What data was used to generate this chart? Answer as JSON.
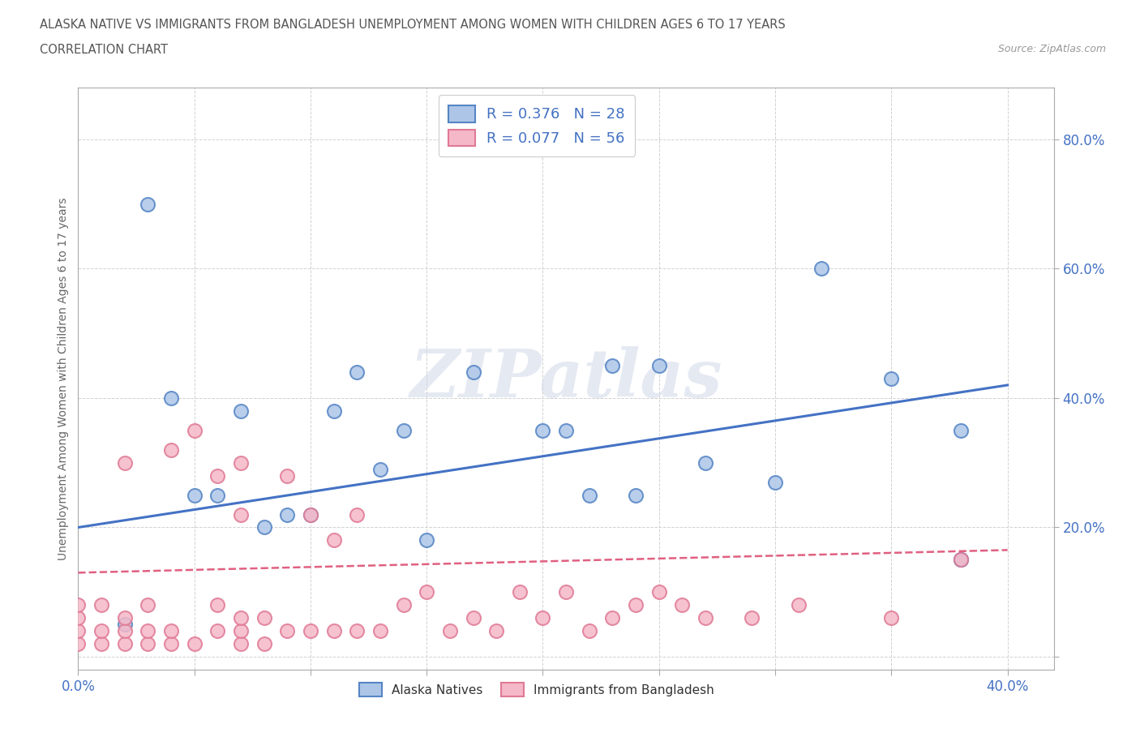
{
  "title_line1": "ALASKA NATIVE VS IMMIGRANTS FROM BANGLADESH UNEMPLOYMENT AMONG WOMEN WITH CHILDREN AGES 6 TO 17 YEARS",
  "title_line2": "CORRELATION CHART",
  "source": "Source: ZipAtlas.com",
  "ylabel": "Unemployment Among Women with Children Ages 6 to 17 years",
  "xlim": [
    0.0,
    0.42
  ],
  "ylim": [
    -0.02,
    0.88
  ],
  "x_ticks": [
    0.0,
    0.05,
    0.1,
    0.15,
    0.2,
    0.25,
    0.3,
    0.35,
    0.4
  ],
  "y_ticks": [
    0.0,
    0.2,
    0.4,
    0.6,
    0.8
  ],
  "blue_fill": "#adc6e8",
  "blue_edge": "#5585c5",
  "pink_fill": "#f5b8c8",
  "pink_edge": "#e07a95",
  "blue_line_color": "#4472c4",
  "pink_line_color": "#e06080",
  "R_blue": 0.376,
  "N_blue": 28,
  "R_pink": 0.077,
  "N_pink": 56,
  "watermark": "ZIPatlas",
  "legend_label_blue": "Alaska Natives",
  "legend_label_pink": "Immigrants from Bangladesh",
  "blue_scatter_x": [
    0.02,
    0.03,
    0.04,
    0.05,
    0.06,
    0.07,
    0.08,
    0.09,
    0.1,
    0.11,
    0.12,
    0.13,
    0.14,
    0.15,
    0.17,
    0.2,
    0.21,
    0.22,
    0.23,
    0.24,
    0.25,
    0.27,
    0.3,
    0.32,
    0.35,
    0.38,
    0.38,
    0.38
  ],
  "blue_scatter_y": [
    0.05,
    0.7,
    0.4,
    0.25,
    0.25,
    0.38,
    0.2,
    0.22,
    0.22,
    0.38,
    0.44,
    0.29,
    0.35,
    0.18,
    0.44,
    0.35,
    0.35,
    0.25,
    0.45,
    0.25,
    0.45,
    0.3,
    0.27,
    0.6,
    0.43,
    0.15,
    0.35,
    0.15
  ],
  "pink_scatter_x": [
    0.0,
    0.0,
    0.0,
    0.0,
    0.01,
    0.01,
    0.01,
    0.02,
    0.02,
    0.02,
    0.02,
    0.03,
    0.03,
    0.03,
    0.04,
    0.04,
    0.04,
    0.05,
    0.05,
    0.06,
    0.06,
    0.06,
    0.07,
    0.07,
    0.07,
    0.07,
    0.07,
    0.08,
    0.08,
    0.09,
    0.09,
    0.1,
    0.1,
    0.11,
    0.11,
    0.12,
    0.12,
    0.13,
    0.14,
    0.15,
    0.16,
    0.17,
    0.18,
    0.19,
    0.2,
    0.21,
    0.22,
    0.23,
    0.24,
    0.25,
    0.26,
    0.27,
    0.29,
    0.31,
    0.35,
    0.38
  ],
  "pink_scatter_y": [
    0.02,
    0.04,
    0.06,
    0.08,
    0.02,
    0.04,
    0.08,
    0.02,
    0.04,
    0.06,
    0.3,
    0.02,
    0.04,
    0.08,
    0.02,
    0.04,
    0.32,
    0.02,
    0.35,
    0.04,
    0.08,
    0.28,
    0.02,
    0.04,
    0.06,
    0.22,
    0.3,
    0.02,
    0.06,
    0.04,
    0.28,
    0.04,
    0.22,
    0.04,
    0.18,
    0.04,
    0.22,
    0.04,
    0.08,
    0.1,
    0.04,
    0.06,
    0.04,
    0.1,
    0.06,
    0.1,
    0.04,
    0.06,
    0.08,
    0.1,
    0.08,
    0.06,
    0.06,
    0.08,
    0.06,
    0.15
  ],
  "blue_trend_x0": 0.0,
  "blue_trend_y0": 0.2,
  "blue_trend_x1": 0.4,
  "blue_trend_y1": 0.42,
  "pink_trend_x0": 0.0,
  "pink_trend_y0": 0.13,
  "pink_trend_x1": 0.4,
  "pink_trend_y1": 0.165
}
